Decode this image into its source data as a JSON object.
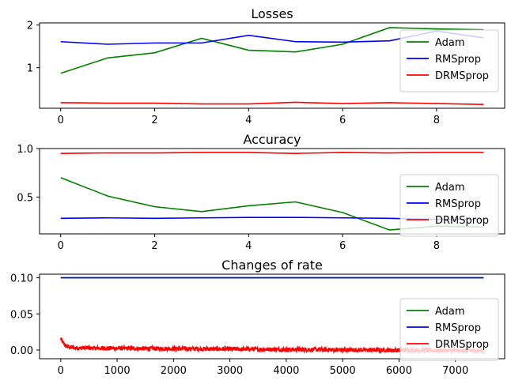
{
  "chart_data": [
    {
      "type": "line",
      "title": "Losses",
      "x": [
        0,
        1,
        2,
        3,
        4,
        5,
        6,
        7,
        8,
        9
      ],
      "xlim": [
        -0.45,
        9.45
      ],
      "ylim": [
        0.05,
        2.05
      ],
      "xticks": [
        0,
        2,
        4,
        6,
        8
      ],
      "yticks": [
        1,
        2
      ],
      "legend": "right",
      "series": [
        {
          "name": "Adam",
          "color": "#008000",
          "values": [
            0.87,
            1.23,
            1.35,
            1.69,
            1.41,
            1.37,
            1.55,
            1.94,
            1.91,
            1.89
          ]
        },
        {
          "name": "RMSprop",
          "color": "#0000ff",
          "values": [
            1.61,
            1.55,
            1.58,
            1.58,
            1.76,
            1.61,
            1.6,
            1.63,
            1.86,
            1.7
          ]
        },
        {
          "name": "DRMSprop",
          "color": "#ff0000",
          "values": [
            0.18,
            0.17,
            0.17,
            0.15,
            0.15,
            0.19,
            0.16,
            0.18,
            0.16,
            0.14
          ]
        }
      ]
    },
    {
      "type": "line",
      "title": "Accuracy",
      "x": [
        0,
        1,
        2,
        3,
        4,
        5,
        6,
        7,
        8,
        9
      ],
      "xlim": [
        -0.45,
        9.45
      ],
      "ylim": [
        0.12,
        1.0
      ],
      "xticks": [
        0,
        2,
        4,
        6,
        8
      ],
      "yticks": [
        0.5,
        1.0
      ],
      "ytick_labels": [
        "0.5",
        "1.0"
      ],
      "legend": "right",
      "series": [
        {
          "name": "Adam",
          "color": "#008000",
          "values": [
            0.7,
            0.51,
            0.4,
            0.35,
            0.41,
            0.45,
            0.34,
            0.16,
            0.2,
            0.19
          ]
        },
        {
          "name": "RMSprop",
          "color": "#0000ff",
          "values": [
            0.28,
            0.285,
            0.28,
            0.285,
            0.29,
            0.29,
            0.285,
            0.28,
            0.27,
            0.27
          ]
        },
        {
          "name": "DRMSprop",
          "color": "#ff0000",
          "values": [
            0.95,
            0.955,
            0.955,
            0.96,
            0.96,
            0.95,
            0.96,
            0.955,
            0.96,
            0.96
          ]
        }
      ]
    },
    {
      "type": "line",
      "title": "Changes of rate",
      "xlim": [
        -376,
        7874
      ],
      "ylim": [
        -0.012,
        0.105
      ],
      "xticks": [
        0,
        1000,
        2000,
        3000,
        4000,
        5000,
        6000,
        7000
      ],
      "yticks": [
        0.0,
        0.05,
        0.1
      ],
      "ytick_labels": [
        "0.00",
        "0.05",
        "0.10"
      ],
      "legend": "right",
      "x_max": 7500,
      "series": [
        {
          "name": "Adam",
          "color": "#008000",
          "constant": 0.1
        },
        {
          "name": "RMSprop",
          "color": "#0000ff",
          "constant": 0.1
        },
        {
          "name": "DRMSprop",
          "color": "#ff0000",
          "start": 0.017,
          "settle": 0.003,
          "end": -0.001,
          "noise": 0.003
        }
      ]
    }
  ]
}
